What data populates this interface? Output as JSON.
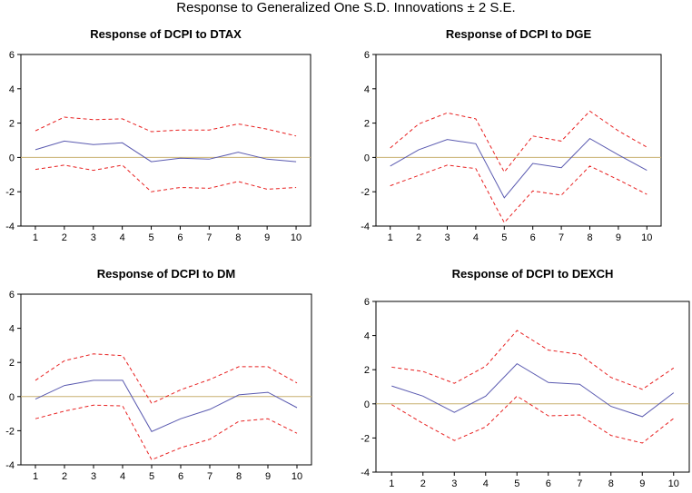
{
  "page_title": "Response to Generalized One S.D. Innovations ± 2 S.E.",
  "colors": {
    "response": "#5a5ab0",
    "band": "#e82020",
    "zero_line": "#c8b070",
    "frame": "#000000"
  },
  "chart_data": [
    {
      "type": "line",
      "title": "Response of DCPI to DTAX",
      "x": [
        1,
        2,
        3,
        4,
        5,
        6,
        7,
        8,
        9,
        10
      ],
      "ylim": [
        -4,
        6
      ],
      "yticks": [
        -4,
        -2,
        0,
        2,
        4,
        6
      ],
      "series": [
        {
          "values": [
            0.45,
            0.95,
            0.75,
            0.85,
            -0.25,
            -0.05,
            -0.1,
            0.3,
            -0.1,
            -0.25
          ]
        },
        {
          "values": [
            1.55,
            2.35,
            2.2,
            2.25,
            1.5,
            1.6,
            1.6,
            1.95,
            1.65,
            1.25
          ]
        },
        {
          "values": [
            -0.7,
            -0.45,
            -0.75,
            -0.45,
            -2.0,
            -1.75,
            -1.8,
            -1.4,
            -1.85,
            -1.75
          ]
        }
      ]
    },
    {
      "type": "line",
      "title": "Response of DCPI to DGE",
      "x": [
        1,
        2,
        3,
        4,
        5,
        6,
        7,
        8,
        9,
        10
      ],
      "ylim": [
        -4,
        6
      ],
      "yticks": [
        -4,
        -2,
        0,
        2,
        4,
        6
      ],
      "series": [
        {
          "values": [
            -0.5,
            0.45,
            1.05,
            0.8,
            -2.35,
            -0.35,
            -0.6,
            1.1,
            0.15,
            -0.75
          ]
        },
        {
          "values": [
            0.55,
            1.95,
            2.6,
            2.25,
            -0.85,
            1.25,
            0.95,
            2.7,
            1.55,
            0.6
          ]
        },
        {
          "values": [
            -1.65,
            -1.05,
            -0.45,
            -0.65,
            -3.8,
            -1.95,
            -2.2,
            -0.5,
            -1.3,
            -2.15
          ]
        }
      ]
    },
    {
      "type": "line",
      "title": "Response of DCPI to DM",
      "x": [
        1,
        2,
        3,
        4,
        5,
        6,
        7,
        8,
        9,
        10
      ],
      "ylim": [
        -4,
        6
      ],
      "yticks": [
        -4,
        -2,
        0,
        2,
        4,
        6
      ],
      "series": [
        {
          "values": [
            -0.15,
            0.65,
            0.95,
            0.95,
            -2.05,
            -1.3,
            -0.75,
            0.1,
            0.25,
            -0.65
          ]
        },
        {
          "values": [
            0.95,
            2.1,
            2.5,
            2.4,
            -0.4,
            0.4,
            1.0,
            1.75,
            1.75,
            0.8
          ]
        },
        {
          "values": [
            -1.3,
            -0.85,
            -0.5,
            -0.55,
            -3.7,
            -3.0,
            -2.5,
            -1.45,
            -1.3,
            -2.15
          ]
        }
      ]
    },
    {
      "type": "line",
      "title": "Response of DCPI to DEXCH",
      "x": [
        1,
        2,
        3,
        4,
        5,
        6,
        7,
        8,
        9,
        10
      ],
      "ylim": [
        -4,
        6
      ],
      "yticks": [
        -4,
        -2,
        0,
        2,
        4,
        6
      ],
      "series": [
        {
          "values": [
            1.05,
            0.45,
            -0.5,
            0.45,
            2.35,
            1.25,
            1.15,
            -0.15,
            -0.75,
            0.65
          ]
        },
        {
          "values": [
            2.15,
            1.9,
            1.2,
            2.2,
            4.3,
            3.15,
            2.9,
            1.55,
            0.85,
            2.1
          ]
        },
        {
          "values": [
            -0.05,
            -1.15,
            -2.15,
            -1.35,
            0.45,
            -0.7,
            -0.65,
            -1.85,
            -2.3,
            -0.85
          ]
        }
      ]
    }
  ]
}
